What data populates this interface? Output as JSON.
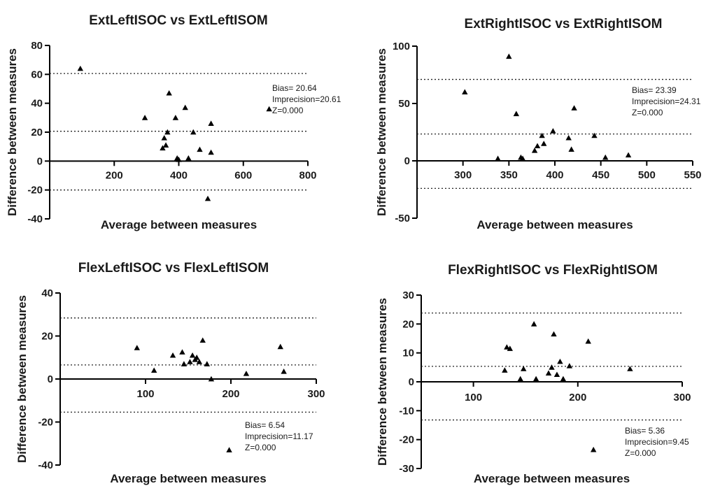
{
  "chart_data": [
    {
      "type": "scatter",
      "title": "ExtLeftISOC vs ExtLeftISOM",
      "xlabel": "Average between measures",
      "ylabel": "Difference between measures",
      "xlim": [
        0,
        800
      ],
      "ylim": [
        -40,
        80
      ],
      "xticks": [
        200,
        400,
        600,
        800
      ],
      "yticks": [
        -40,
        -20,
        0,
        20,
        40,
        60,
        80
      ],
      "reference_lines": [
        60.6,
        20.64,
        -20
      ],
      "annotations": [
        "Bias= 20.64",
        "Imprecision=20.61",
        "Z=0.000"
      ],
      "points": [
        {
          "x": 95,
          "y": 64
        },
        {
          "x": 295,
          "y": 30
        },
        {
          "x": 350,
          "y": 9
        },
        {
          "x": 355,
          "y": 16
        },
        {
          "x": 360,
          "y": 11
        },
        {
          "x": 365,
          "y": 20
        },
        {
          "x": 370,
          "y": 47
        },
        {
          "x": 390,
          "y": 30
        },
        {
          "x": 395,
          "y": 2
        },
        {
          "x": 400,
          "y": 1
        },
        {
          "x": 420,
          "y": 37
        },
        {
          "x": 430,
          "y": 2
        },
        {
          "x": 445,
          "y": 20
        },
        {
          "x": 465,
          "y": 8
        },
        {
          "x": 490,
          "y": -26
        },
        {
          "x": 500,
          "y": 26
        },
        {
          "x": 500,
          "y": 6
        },
        {
          "x": 680,
          "y": 36
        }
      ]
    },
    {
      "type": "scatter",
      "title": "ExtRightISOC vs ExtRightISOM",
      "xlabel": "Average between measures",
      "ylabel": "Difference between measures",
      "xlim": [
        250,
        550
      ],
      "ylim": [
        -50,
        100
      ],
      "xticks": [
        300,
        350,
        400,
        450,
        500,
        550
      ],
      "yticks": [
        -50,
        0,
        50,
        100
      ],
      "reference_lines": [
        71,
        23.39,
        -24
      ],
      "annotations": [
        "Bias= 23.39",
        "Imprecision=24.31",
        "Z=0.000"
      ],
      "points": [
        {
          "x": 302,
          "y": 60
        },
        {
          "x": 338,
          "y": 2
        },
        {
          "x": 350,
          "y": 91
        },
        {
          "x": 358,
          "y": 41
        },
        {
          "x": 363,
          "y": 3
        },
        {
          "x": 365,
          "y": 2
        },
        {
          "x": 378,
          "y": 9
        },
        {
          "x": 381,
          "y": 13
        },
        {
          "x": 386,
          "y": 22
        },
        {
          "x": 388,
          "y": 15
        },
        {
          "x": 398,
          "y": 26
        },
        {
          "x": 415,
          "y": 20
        },
        {
          "x": 418,
          "y": 10
        },
        {
          "x": 421,
          "y": 46
        },
        {
          "x": 443,
          "y": 22
        },
        {
          "x": 455,
          "y": 3
        },
        {
          "x": 480,
          "y": 5
        }
      ]
    },
    {
      "type": "scatter",
      "title": "FlexLeftISOC vs FlexLeftISOM",
      "xlabel": "Average between measures",
      "ylabel": "Difference between measures",
      "xlim": [
        0,
        300
      ],
      "ylim": [
        -40,
        40
      ],
      "xticks": [
        100,
        200,
        300
      ],
      "yticks": [
        -40,
        -20,
        0,
        20,
        40
      ],
      "reference_lines": [
        28.4,
        6.54,
        -15.4
      ],
      "annotations": [
        "Bias= 6.54",
        "Imprecision=11.17",
        "Z=0.000"
      ],
      "points": [
        {
          "x": 90,
          "y": 14.5
        },
        {
          "x": 110,
          "y": 4
        },
        {
          "x": 132,
          "y": 11
        },
        {
          "x": 143,
          "y": 12.5
        },
        {
          "x": 145,
          "y": 7
        },
        {
          "x": 152,
          "y": 8
        },
        {
          "x": 155,
          "y": 11
        },
        {
          "x": 158,
          "y": 9
        },
        {
          "x": 160,
          "y": 10
        },
        {
          "x": 163,
          "y": 8
        },
        {
          "x": 167,
          "y": 18
        },
        {
          "x": 172,
          "y": 7
        },
        {
          "x": 177,
          "y": 0
        },
        {
          "x": 198,
          "y": -33
        },
        {
          "x": 218,
          "y": 2.5
        },
        {
          "x": 258,
          "y": 15
        },
        {
          "x": 262,
          "y": 3.5
        }
      ]
    },
    {
      "type": "scatter",
      "title": "FlexRightISOC vs FlexRightISOM",
      "xlabel": "Average between measures",
      "ylabel": "Difference between measures",
      "xlim": [
        50,
        300
      ],
      "ylim": [
        -30,
        30
      ],
      "xticks": [
        100,
        200,
        300
      ],
      "yticks": [
        -30,
        -20,
        -10,
        0,
        10,
        20,
        30
      ],
      "reference_lines": [
        23.8,
        5.36,
        -13.2
      ],
      "annotations": [
        "Bias= 5.36",
        "Imprecision=9.45",
        "Z=0.000"
      ],
      "points": [
        {
          "x": 130,
          "y": 4
        },
        {
          "x": 132,
          "y": 12
        },
        {
          "x": 135,
          "y": 11.5
        },
        {
          "x": 145,
          "y": 1
        },
        {
          "x": 148,
          "y": 4.5
        },
        {
          "x": 158,
          "y": 20
        },
        {
          "x": 160,
          "y": 1
        },
        {
          "x": 172,
          "y": 3
        },
        {
          "x": 175,
          "y": 5
        },
        {
          "x": 177,
          "y": 16.5
        },
        {
          "x": 180,
          "y": 2.5
        },
        {
          "x": 183,
          "y": 7
        },
        {
          "x": 186,
          "y": 1
        },
        {
          "x": 192,
          "y": 5.5
        },
        {
          "x": 210,
          "y": 14
        },
        {
          "x": 215,
          "y": -23.5
        },
        {
          "x": 250,
          "y": 4.5
        }
      ]
    }
  ]
}
